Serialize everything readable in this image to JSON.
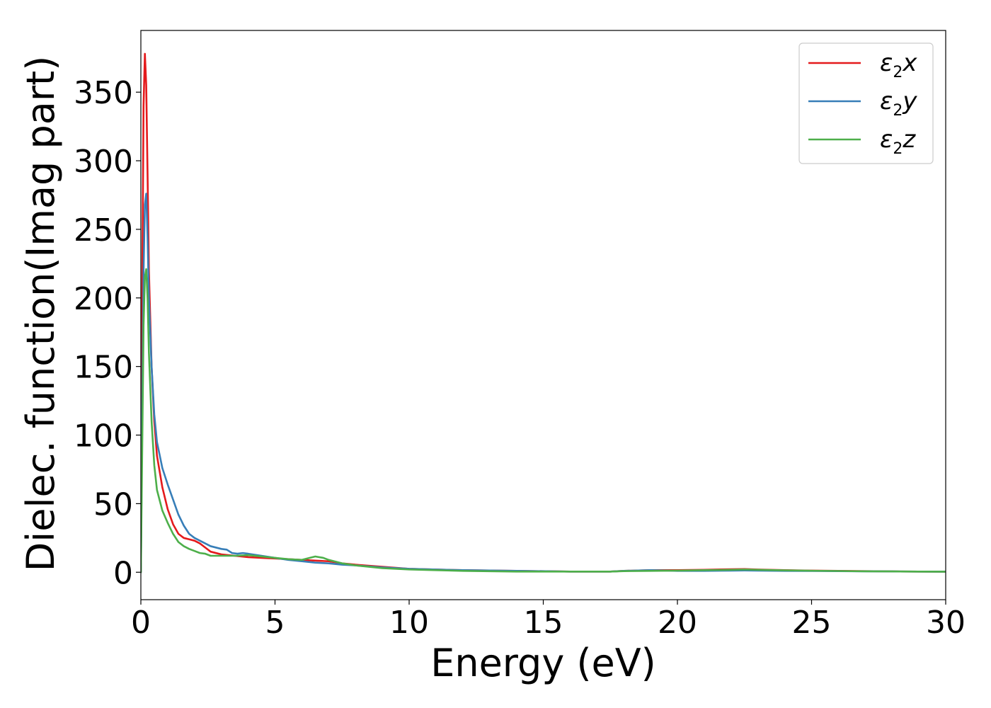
{
  "chart_data": {
    "type": "line",
    "title": "",
    "xlabel": "Energy (eV)",
    "ylabel": "Dielec. function(Imag part)",
    "xlim": [
      0,
      30
    ],
    "ylim": [
      -20,
      395
    ],
    "xticks": [
      0,
      5,
      10,
      15,
      20,
      25,
      30
    ],
    "yticks": [
      0,
      50,
      100,
      150,
      200,
      250,
      300,
      350
    ],
    "grid": false,
    "legend_position": "top-right",
    "series": [
      {
        "name": "ε₂x",
        "label_base": "ε",
        "label_sub": "2",
        "label_tail": "x",
        "color": "#e41a1c",
        "x": [
          0,
          0.05,
          0.1,
          0.15,
          0.2,
          0.25,
          0.3,
          0.4,
          0.5,
          0.6,
          0.8,
          1.0,
          1.2,
          1.4,
          1.6,
          1.8,
          2.0,
          2.2,
          2.4,
          2.6,
          3.0,
          3.5,
          4.0,
          4.5,
          5.0,
          5.5,
          6.0,
          6.5,
          7.0,
          7.5,
          8.0,
          9.0,
          10.0,
          11.0,
          12.0,
          14.0,
          16.0,
          17.5,
          18.0,
          19.0,
          20.0,
          21.0,
          22.0,
          22.5,
          23.0,
          24.0,
          25.0,
          26.0,
          27.0,
          28.0,
          29.0,
          30.0
        ],
        "y": [
          0,
          200,
          340,
          378,
          355,
          290,
          220,
          150,
          110,
          85,
          62,
          46,
          35,
          28,
          25,
          24,
          23,
          21,
          18,
          15,
          13,
          12,
          11,
          10.5,
          10,
          9.5,
          9,
          8.5,
          8,
          6.5,
          5.5,
          4,
          2.5,
          2,
          1.5,
          1,
          0.5,
          0.5,
          1,
          1.5,
          1.5,
          1.8,
          2.2,
          2.3,
          2,
          1.5,
          1.2,
          1,
          0.8,
          0.6,
          0.5,
          0.4
        ]
      },
      {
        "name": "ε₂y",
        "label_base": "ε",
        "label_sub": "2",
        "label_tail": "y",
        "color": "#377eb8",
        "x": [
          0,
          0.05,
          0.1,
          0.15,
          0.2,
          0.25,
          0.3,
          0.4,
          0.5,
          0.6,
          0.8,
          1.0,
          1.2,
          1.4,
          1.6,
          1.8,
          2.0,
          2.2,
          2.4,
          2.6,
          3.0,
          3.2,
          3.4,
          3.6,
          3.8,
          4.0,
          4.5,
          5.0,
          5.5,
          6.0,
          6.5,
          7.0,
          7.5,
          8.0,
          9.0,
          10.0,
          11.0,
          12.0,
          14.0,
          16.0,
          17.5,
          18.0,
          19.0,
          20.0,
          21.0,
          22.0,
          22.5,
          23.0,
          24.0,
          25.0,
          26.0,
          27.0,
          28.0,
          29.0,
          30.0
        ],
        "y": [
          0,
          120,
          220,
          268,
          276,
          245,
          200,
          150,
          115,
          95,
          76,
          64,
          53,
          42,
          34,
          28,
          25,
          23,
          21,
          19,
          17,
          16.5,
          14,
          13.5,
          14,
          13.5,
          12,
          10.5,
          9,
          8,
          7,
          6.5,
          5.5,
          5,
          3.5,
          2.5,
          2,
          1.5,
          1,
          0.5,
          0.5,
          1,
          1.5,
          1,
          1,
          1.2,
          1.3,
          1.2,
          1,
          0.9,
          0.8,
          0.7,
          0.6,
          0.5,
          0.4
        ]
      },
      {
        "name": "ε₂z",
        "label_base": "ε",
        "label_sub": "2",
        "label_tail": "z",
        "color": "#4daf4a",
        "x": [
          0,
          0.05,
          0.1,
          0.15,
          0.2,
          0.25,
          0.3,
          0.4,
          0.5,
          0.6,
          0.8,
          1.0,
          1.2,
          1.4,
          1.6,
          1.8,
          2.0,
          2.2,
          2.4,
          2.6,
          3.0,
          3.5,
          4.0,
          4.5,
          5.0,
          5.5,
          6.0,
          6.3,
          6.5,
          6.8,
          7.0,
          7.5,
          8.0,
          9.0,
          10.0,
          11.0,
          12.0,
          14.0,
          16.0,
          17.5,
          18.0,
          19.0,
          20.0,
          21.0,
          22.0,
          22.5,
          23.0,
          24.0,
          25.0,
          26.0,
          27.0,
          28.0,
          29.0,
          30.0
        ],
        "y": [
          0,
          90,
          180,
          215,
          221,
          200,
          160,
          110,
          78,
          60,
          45,
          36,
          28,
          22,
          19,
          17,
          15.5,
          14,
          13.5,
          12,
          12,
          12,
          12.5,
          11.5,
          10.5,
          9.5,
          9,
          10.5,
          11.5,
          10.5,
          9,
          6.5,
          5,
          3,
          2,
          1.5,
          1,
          0.5,
          0.5,
          0.5,
          0.8,
          1,
          1.2,
          1.5,
          1.8,
          2,
          1.8,
          1.4,
          1.1,
          0.9,
          0.7,
          0.6,
          0.5,
          0.4
        ]
      }
    ]
  }
}
